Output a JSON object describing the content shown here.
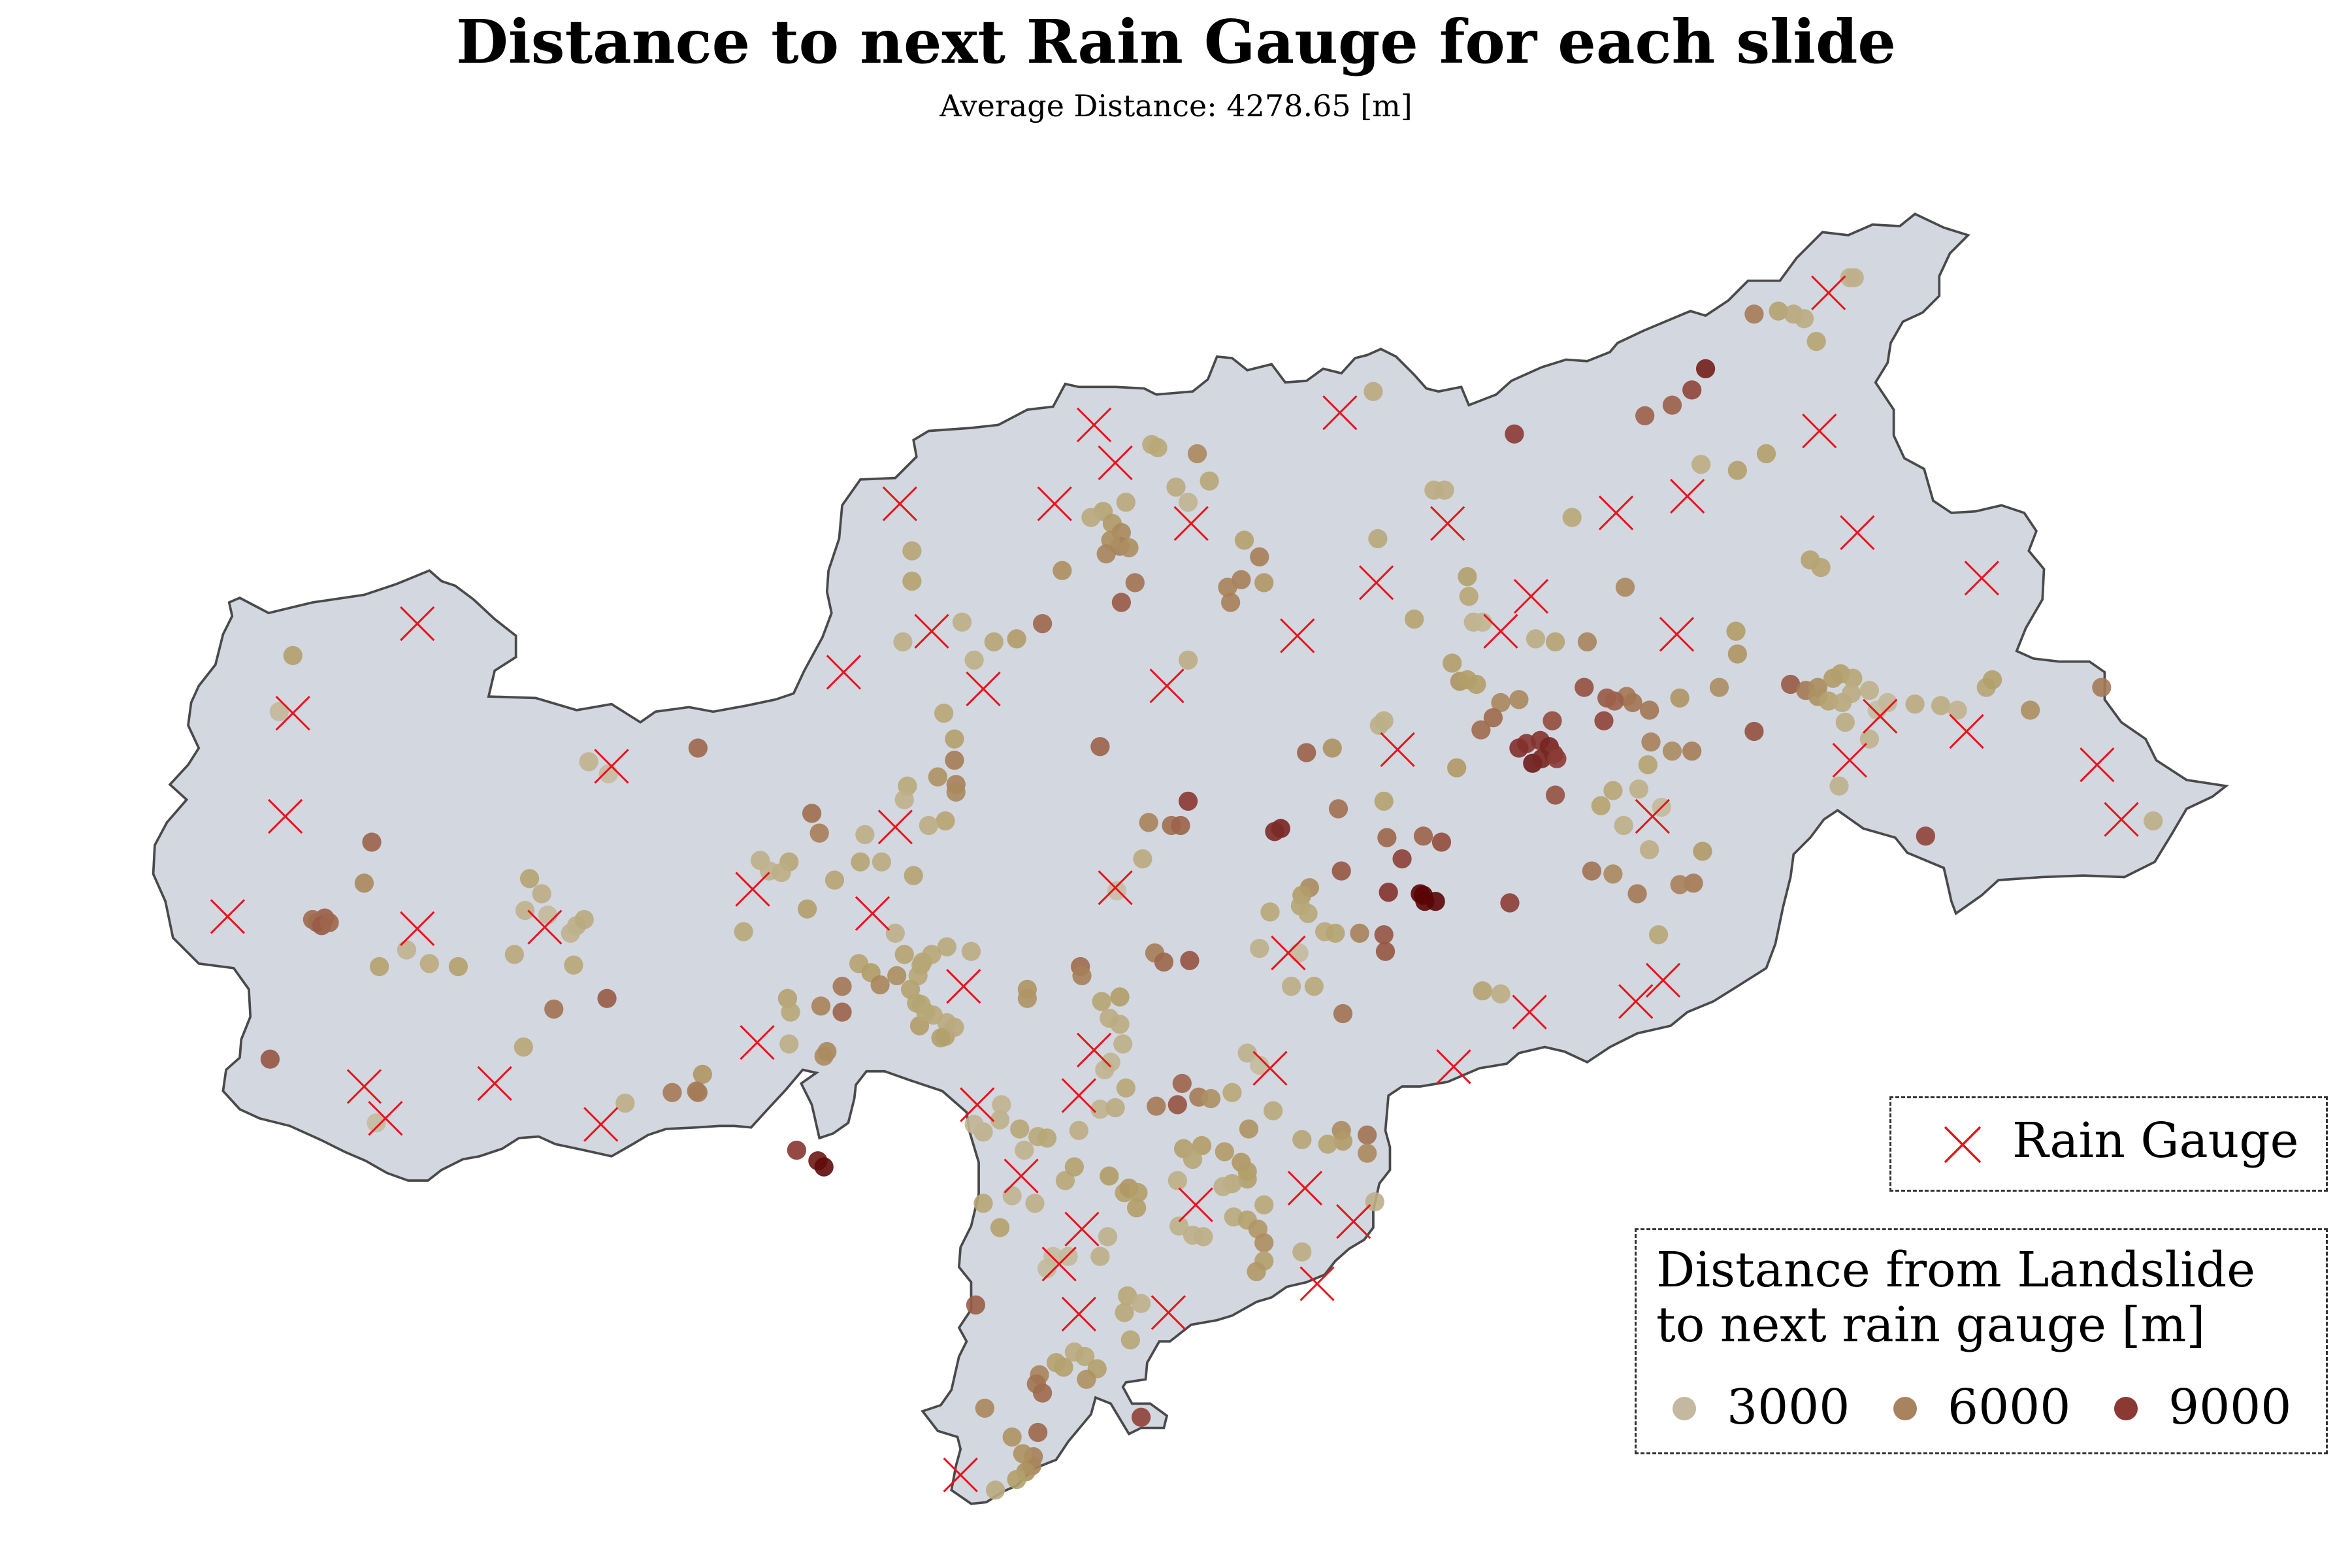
{
  "title": "Distance to next Rain Gauge for each slide",
  "subtitle": "Average Distance: 4278.65 [m]",
  "legend": {
    "gauge_label": "Rain Gauge",
    "distance_title_line1": "Distance from Landslide",
    "distance_title_line2": "to next rain gauge [m]",
    "entries": [
      {
        "label": "3000",
        "color": "#c4b9a0"
      },
      {
        "label": "6000",
        "color": "#a88360"
      },
      {
        "label": "9000",
        "color": "#8a3a33"
      }
    ]
  },
  "colors": {
    "region_fill": "#d3d7e0",
    "region_stroke": "#4a4a4a",
    "gauge_marker": "#e8141b",
    "scale_low": "#c8c0a8",
    "scale_mid": "#b3a06a",
    "scale_high": "#8b3a34",
    "scale_max": "#5a0606"
  },
  "icons": {
    "gauge": "x-cross-icon",
    "landslide": "filled-circle-icon"
  },
  "chart_data": {
    "type": "scatter",
    "color_scale": {
      "min": 0,
      "max": 11000
    },
    "gauges": [
      [
        1205,
        193
      ],
      [
        1199,
        284
      ],
      [
        883,
        272
      ],
      [
        721,
        280
      ],
      [
        735,
        305
      ],
      [
        593,
        332
      ],
      [
        695,
        332
      ],
      [
        785,
        345
      ],
      [
        1065,
        338
      ],
      [
        1112,
        327
      ],
      [
        954,
        345
      ],
      [
        1224,
        351
      ],
      [
        1306,
        381
      ],
      [
        907,
        384
      ],
      [
        1009,
        393
      ],
      [
        989,
        416
      ],
      [
        1105,
        418
      ],
      [
        855,
        419
      ],
      [
        614,
        416
      ],
      [
        275,
        411
      ],
      [
        556,
        443
      ],
      [
        648,
        454
      ],
      [
        769,
        452
      ],
      [
        1239,
        472
      ],
      [
        1296,
        482
      ],
      [
        1219,
        501
      ],
      [
        1382,
        504
      ],
      [
        1398,
        540
      ],
      [
        921,
        494
      ],
      [
        193,
        470
      ],
      [
        403,
        505
      ],
      [
        188,
        538
      ],
      [
        1089,
        538
      ],
      [
        590,
        545
      ],
      [
        735,
        585
      ],
      [
        496,
        586
      ],
      [
        575,
        602
      ],
      [
        150,
        604
      ],
      [
        275,
        612
      ],
      [
        359,
        611
      ],
      [
        849,
        628
      ],
      [
        635,
        650
      ],
      [
        1008,
        667
      ],
      [
        1078,
        660
      ],
      [
        1096,
        646
      ],
      [
        499,
        687
      ],
      [
        721,
        692
      ],
      [
        837,
        704
      ],
      [
        958,
        703
      ],
      [
        240,
        716
      ],
      [
        254,
        737
      ],
      [
        326,
        714
      ],
      [
        396,
        741
      ],
      [
        644,
        728
      ],
      [
        711,
        722
      ],
      [
        673,
        775
      ],
      [
        788,
        794
      ],
      [
        860,
        783
      ],
      [
        713,
        810
      ],
      [
        892,
        805
      ],
      [
        698,
        833
      ],
      [
        868,
        846
      ],
      [
        711,
        866
      ],
      [
        770,
        865
      ],
      [
        633,
        972
      ]
    ],
    "landslides": [
      [
        1219,
        183
      ],
      [
        1222,
        183
      ],
      [
        1156,
        207
      ],
      [
        1172,
        205
      ],
      [
        1182,
        207
      ],
      [
        1189,
        210
      ],
      [
        1197,
        225
      ],
      [
        1124,
        243
      ],
      [
        1115,
        257
      ],
      [
        1102,
        267
      ],
      [
        1084,
        274
      ],
      [
        998,
        286
      ],
      [
        905,
        258
      ],
      [
        1164,
        299
      ],
      [
        1145,
        310
      ],
      [
        1121,
        306
      ],
      [
        759,
        293
      ],
      [
        763,
        295
      ],
      [
        789,
        299
      ],
      [
        797,
        317
      ],
      [
        775,
        321
      ],
      [
        783,
        331
      ],
      [
        742,
        331
      ],
      [
        727,
        337
      ],
      [
        719,
        341
      ],
      [
        733,
        345
      ],
      [
        739,
        351
      ],
      [
        738,
        360
      ],
      [
        732,
        356
      ],
      [
        744,
        361
      ],
      [
        729,
        365
      ],
      [
        700,
        376
      ],
      [
        748,
        384
      ],
      [
        739,
        397
      ],
      [
        820,
        356
      ],
      [
        830,
        367
      ],
      [
        818,
        382
      ],
      [
        809,
        387
      ],
      [
        811,
        397
      ],
      [
        833,
        384
      ],
      [
        601,
        363
      ],
      [
        601,
        383
      ],
      [
        634,
        410
      ],
      [
        655,
        423
      ],
      [
        670,
        421
      ],
      [
        687,
        411
      ],
      [
        595,
        423
      ],
      [
        783,
        435
      ],
      [
        908,
        355
      ],
      [
        945,
        323
      ],
      [
        952,
        323
      ],
      [
        1036,
        341
      ],
      [
        1071,
        387
      ],
      [
        1193,
        369
      ],
      [
        1200,
        374
      ],
      [
        967,
        380
      ],
      [
        968,
        393
      ],
      [
        971,
        410
      ],
      [
        977,
        410
      ],
      [
        932,
        408
      ],
      [
        1012,
        421
      ],
      [
        1025,
        423
      ],
      [
        1046,
        423
      ],
      [
        1144,
        416
      ],
      [
        1145,
        431
      ],
      [
        1133,
        453
      ],
      [
        1107,
        460
      ],
      [
        957,
        437
      ],
      [
        962,
        449
      ],
      [
        967,
        448
      ],
      [
        973,
        451
      ],
      [
        989,
        463
      ],
      [
        1001,
        461
      ],
      [
        984,
        473
      ],
      [
        976,
        481
      ],
      [
        1023,
        475
      ],
      [
        1044,
        453
      ],
      [
        1059,
        460
      ],
      [
        1072,
        459
      ],
      [
        1057,
        475
      ],
      [
        1064,
        462
      ],
      [
        1076,
        463
      ],
      [
        1087,
        468
      ],
      [
        1088,
        489
      ],
      [
        1102,
        495
      ],
      [
        1115,
        495
      ],
      [
        1086,
        504
      ],
      [
        1063,
        521
      ],
      [
        1080,
        520
      ],
      [
        1095,
        532
      ],
      [
        1070,
        544
      ],
      [
        1055,
        531
      ],
      [
        1122,
        561
      ],
      [
        1087,
        560
      ],
      [
        1116,
        582
      ],
      [
        1049,
        574
      ],
      [
        1063,
        576
      ],
      [
        1079,
        589
      ],
      [
        1107,
        583
      ],
      [
        1093,
        616
      ],
      [
        1156,
        482
      ],
      [
        1180,
        451
      ],
      [
        1190,
        455
      ],
      [
        1198,
        453
      ],
      [
        1208,
        447
      ],
      [
        1213,
        444
      ],
      [
        1221,
        447
      ],
      [
        1232,
        455
      ],
      [
        1198,
        459
      ],
      [
        1205,
        462
      ],
      [
        1214,
        463
      ],
      [
        1220,
        457
      ],
      [
        1237,
        468
      ],
      [
        1244,
        463
      ],
      [
        1262,
        464
      ],
      [
        1279,
        465
      ],
      [
        1290,
        468
      ],
      [
        1309,
        453
      ],
      [
        1313,
        448
      ],
      [
        1338,
        468
      ],
      [
        1385,
        453
      ],
      [
        1212,
        518
      ],
      [
        1216,
        476
      ],
      [
        1232,
        487
      ],
      [
        1269,
        551
      ],
      [
        1419,
        541
      ],
      [
        1006,
        490
      ],
      [
        1015,
        488
      ],
      [
        1021,
        492
      ],
      [
        1010,
        503
      ],
      [
        1024,
        497
      ],
      [
        1016,
        500
      ],
      [
        1001,
        493
      ],
      [
        1026,
        500
      ],
      [
        1025,
        524
      ],
      [
        960,
        506
      ],
      [
        912,
        475
      ],
      [
        909,
        478
      ],
      [
        878,
        493
      ],
      [
        861,
        496
      ],
      [
        844,
        546
      ],
      [
        840,
        548
      ],
      [
        882,
        533
      ],
      [
        912,
        528
      ],
      [
        914,
        552
      ],
      [
        938,
        551
      ],
      [
        950,
        555
      ],
      [
        924,
        566
      ],
      [
        884,
        574
      ],
      [
        863,
        585
      ],
      [
        858,
        590
      ],
      [
        915,
        588
      ],
      [
        936,
        589
      ],
      [
        939,
        594
      ],
      [
        938,
        590
      ],
      [
        946,
        594
      ],
      [
        995,
        595
      ],
      [
        837,
        601
      ],
      [
        857,
        597
      ],
      [
        862,
        602
      ],
      [
        873,
        614
      ],
      [
        880,
        615
      ],
      [
        896,
        615
      ],
      [
        912,
        616
      ],
      [
        913,
        627
      ],
      [
        856,
        628
      ],
      [
        830,
        625
      ],
      [
        851,
        650
      ],
      [
        866,
        650
      ],
      [
        885,
        668
      ],
      [
        977,
        653
      ],
      [
        989,
        655
      ],
      [
        783,
        528
      ],
      [
        772,
        544
      ],
      [
        757,
        542
      ],
      [
        778,
        544
      ],
      [
        753,
        566
      ],
      [
        736,
        587
      ],
      [
        761,
        628
      ],
      [
        784,
        633
      ],
      [
        767,
        634
      ],
      [
        712,
        637
      ],
      [
        713,
        643
      ],
      [
        677,
        652
      ],
      [
        677,
        658
      ],
      [
        640,
        627
      ],
      [
        624,
        624
      ],
      [
        614,
        629
      ],
      [
        605,
        643
      ],
      [
        607,
        662
      ],
      [
        615,
        669
      ],
      [
        623,
        683
      ],
      [
        629,
        677
      ],
      [
        738,
        657
      ],
      [
        726,
        660
      ],
      [
        731,
        671
      ],
      [
        738,
        675
      ],
      [
        740,
        688
      ],
      [
        732,
        700
      ],
      [
        742,
        717
      ],
      [
        728,
        705
      ],
      [
        725,
        731
      ],
      [
        735,
        730
      ],
      [
        762,
        729
      ],
      [
        776,
        728
      ],
      [
        790,
        723
      ],
      [
        779,
        714
      ],
      [
        822,
        694
      ],
      [
        830,
        702
      ],
      [
        798,
        724
      ],
      [
        812,
        720
      ],
      [
        823,
        744
      ],
      [
        839,
        732
      ],
      [
        858,
        751
      ],
      [
        884,
        745
      ],
      [
        885,
        752
      ],
      [
        901,
        748
      ],
      [
        901,
        760
      ],
      [
        875,
        754
      ],
      [
        792,
        755
      ],
      [
        807,
        759
      ],
      [
        818,
        766
      ],
      [
        822,
        772
      ],
      [
        822,
        777
      ],
      [
        812,
        780
      ],
      [
        806,
        782
      ],
      [
        780,
        757
      ],
      [
        786,
        764
      ],
      [
        776,
        778
      ],
      [
        731,
        775
      ],
      [
        741,
        786
      ],
      [
        744,
        783
      ],
      [
        750,
        786
      ],
      [
        749,
        796
      ],
      [
        777,
        808
      ],
      [
        786,
        814
      ],
      [
        793,
        815
      ],
      [
        813,
        802
      ],
      [
        822,
        804
      ],
      [
        829,
        810
      ],
      [
        833,
        794
      ],
      [
        833,
        819
      ],
      [
        833,
        831
      ],
      [
        828,
        838
      ],
      [
        858,
        825
      ],
      [
        906,
        792
      ],
      [
        659,
        809
      ],
      [
        667,
        788
      ],
      [
        648,
        793
      ],
      [
        682,
        793
      ],
      [
        694,
        828
      ],
      [
        702,
        778
      ],
      [
        708,
        769
      ],
      [
        711,
        745
      ],
      [
        659,
        738
      ],
      [
        672,
        744
      ],
      [
        684,
        749
      ],
      [
        690,
        750
      ],
      [
        675,
        758
      ],
      [
        648,
        746
      ],
      [
        642,
        741
      ],
      [
        660,
        728
      ],
      [
        743,
        854
      ],
      [
        752,
        859
      ],
      [
        741,
        865
      ],
      [
        745,
        883
      ],
      [
        708,
        891
      ],
      [
        701,
        901
      ],
      [
        696,
        898
      ],
      [
        715,
        894
      ],
      [
        723,
        902
      ],
      [
        716,
        909
      ],
      [
        685,
        906
      ],
      [
        683,
        912
      ],
      [
        687,
        918
      ],
      [
        643,
        860
      ],
      [
        649,
        928
      ],
      [
        667,
        947
      ],
      [
        681,
        960
      ],
      [
        680,
        966
      ],
      [
        684,
        944
      ],
      [
        674,
        958
      ],
      [
        676,
        970
      ],
      [
        656,
        982
      ],
      [
        670,
        975
      ],
      [
        752,
        934
      ],
      [
        690,
        836
      ],
      [
        704,
        828
      ],
      [
        725,
        828
      ],
      [
        730,
        815
      ],
      [
        622,
        470
      ],
      [
        629,
        487
      ],
      [
        629,
        501
      ],
      [
        618,
        512
      ],
      [
        630,
        517
      ],
      [
        630,
        522
      ],
      [
        623,
        541
      ],
      [
        612,
        544
      ],
      [
        598,
        518
      ],
      [
        596,
        527
      ],
      [
        570,
        550
      ],
      [
        567,
        568
      ],
      [
        581,
        568
      ],
      [
        602,
        577
      ],
      [
        550,
        580
      ],
      [
        532,
        599
      ],
      [
        501,
        567
      ],
      [
        507,
        574
      ],
      [
        520,
        568
      ],
      [
        515,
        575
      ],
      [
        490,
        614
      ],
      [
        540,
        549
      ],
      [
        535,
        536
      ],
      [
        555,
        650
      ],
      [
        541,
        663
      ],
      [
        555,
        667
      ],
      [
        566,
        635
      ],
      [
        574,
        641
      ],
      [
        580,
        649
      ],
      [
        591,
        643
      ],
      [
        600,
        652
      ],
      [
        604,
        661
      ],
      [
        606,
        676
      ],
      [
        610,
        667
      ],
      [
        624,
        674
      ],
      [
        620,
        684
      ],
      [
        590,
        615
      ],
      [
        596,
        629
      ],
      [
        607,
        636
      ],
      [
        608,
        634
      ],
      [
        519,
        658
      ],
      [
        521,
        667
      ],
      [
        520,
        688
      ],
      [
        545,
        693
      ],
      [
        543,
        696
      ],
      [
        525,
        758
      ],
      [
        539,
        765
      ],
      [
        543,
        769
      ],
      [
        463,
        708
      ],
      [
        443,
        720
      ],
      [
        460,
        720
      ],
      [
        460,
        493
      ],
      [
        725,
        492
      ],
      [
        412,
        727
      ],
      [
        459,
        719
      ],
      [
        357,
        589
      ],
      [
        349,
        579
      ],
      [
        346,
        600
      ],
      [
        361,
        603
      ],
      [
        380,
        610
      ],
      [
        385,
        606
      ],
      [
        376,
        615
      ],
      [
        339,
        629
      ],
      [
        378,
        636
      ],
      [
        365,
        665
      ],
      [
        400,
        658
      ],
      [
        345,
        690
      ],
      [
        388,
        502
      ],
      [
        401,
        510
      ],
      [
        193,
        432
      ],
      [
        184,
        469
      ],
      [
        245,
        555
      ],
      [
        240,
        582
      ],
      [
        214,
        605
      ],
      [
        209,
        608
      ],
      [
        206,
        606
      ],
      [
        212,
        610
      ],
      [
        217,
        608
      ],
      [
        250,
        637
      ],
      [
        268,
        626
      ],
      [
        283,
        635
      ],
      [
        302,
        637
      ],
      [
        178,
        698
      ],
      [
        248,
        740
      ],
      [
        642,
        435
      ]
    ]
  }
}
